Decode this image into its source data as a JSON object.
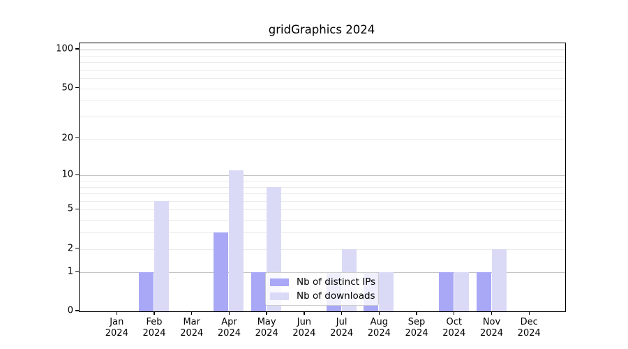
{
  "chart_data": {
    "type": "bar",
    "title": "gridGraphics 2024",
    "categories": [
      "Jan 2024",
      "Feb 2024",
      "Mar 2024",
      "Apr 2024",
      "May 2024",
      "Jun 2024",
      "Jul 2024",
      "Aug 2024",
      "Sep 2024",
      "Oct 2024",
      "Nov 2024",
      "Dec 2024"
    ],
    "series": [
      {
        "name": "Nb of distinct IPs",
        "color": "#a8a8f6",
        "values": [
          0,
          1,
          0,
          3,
          1,
          0,
          1,
          1,
          0,
          1,
          1,
          0
        ]
      },
      {
        "name": "Nb of downloads",
        "color": "#dadaf7",
        "values": [
          0,
          6,
          0,
          11,
          8,
          0,
          2,
          1,
          0,
          1,
          2,
          0
        ]
      }
    ],
    "y_axis": {
      "scale": "log1p",
      "ticks": [
        0,
        1,
        2,
        5,
        10,
        20,
        50,
        100
      ],
      "minor_ticks": [
        3,
        4,
        6,
        7,
        8,
        9,
        30,
        40,
        60,
        70,
        80,
        90
      ]
    },
    "legend": {
      "position": "inside-bottom-center",
      "entries": [
        "Nb of distinct IPs",
        "Nb of downloads"
      ]
    },
    "grid": "on",
    "colors": {
      "grid_power10": "#c3c3c3",
      "grid_minor": "#ebebeb",
      "axis": "#000000",
      "background": "#ffffff"
    }
  }
}
